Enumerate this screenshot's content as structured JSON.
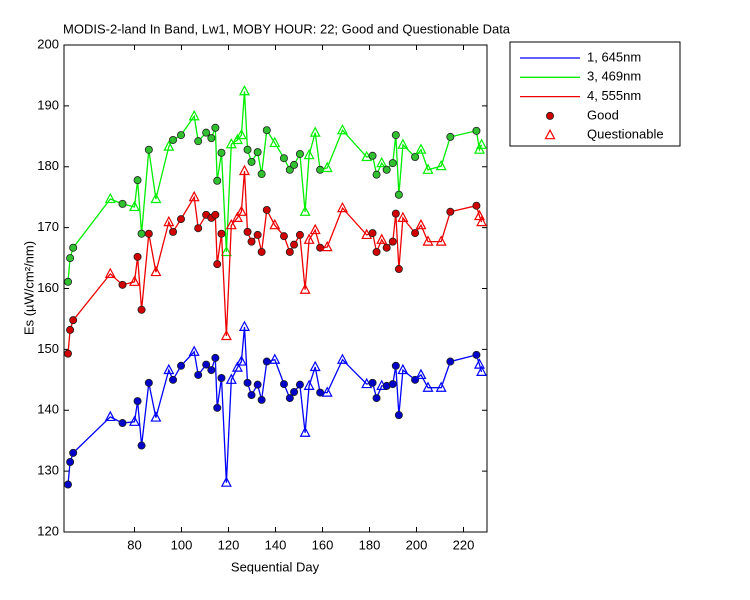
{
  "chart_data": {
    "type": "line",
    "title": "MODIS-2-land In Band,  Lw1, MOBY HOUR: 22;  Good and Questionable Data",
    "x_label": "Sequential Day",
    "y_label": "Es (µW/cm²/nm)",
    "xlim": [
      50,
      230
    ],
    "xticks": [
      80,
      100,
      120,
      140,
      160,
      180,
      200,
      220
    ],
    "ylim": [
      120,
      200
    ],
    "yticks": [
      120,
      130,
      140,
      150,
      160,
      170,
      180,
      190,
      200
    ],
    "x": [
      51.7,
      52.6,
      53.9,
      69.7,
      74.9,
      80.0,
      81.3,
      83.0,
      86.1,
      89.1,
      94.6,
      96.4,
      99.8,
      105.4,
      107.1,
      110.5,
      112.7,
      114.4,
      115.2,
      117.0,
      119.1,
      121.2,
      123.8,
      125.5,
      126.8,
      128.1,
      129.8,
      132.4,
      134.1,
      136.3,
      139.7,
      143.6,
      146.1,
      147.9,
      150.4,
      152.6,
      154.3,
      156.9,
      159.0,
      162.0,
      168.5,
      178.8,
      181.3,
      183.0,
      185.2,
      187.3,
      189.9,
      191.2,
      192.5,
      194.2,
      199.4,
      201.9,
      204.9,
      210.5,
      214.4,
      225.5,
      226.8,
      227.7
    ],
    "quality": [
      0,
      0,
      0,
      1,
      0,
      1,
      0,
      0,
      0,
      1,
      1,
      0,
      0,
      1,
      0,
      0,
      0,
      0,
      0,
      0,
      1,
      1,
      1,
      1,
      1,
      0,
      0,
      0,
      0,
      0,
      1,
      0,
      0,
      0,
      0,
      1,
      1,
      1,
      0,
      1,
      1,
      1,
      0,
      0,
      1,
      0,
      0,
      0,
      0,
      1,
      0,
      1,
      1,
      1,
      0,
      0,
      1,
      1
    ],
    "marker_legend": [
      {
        "name": "Good",
        "marker": "circle",
        "color": "#d00000"
      },
      {
        "name": "Questionable",
        "marker": "triangle",
        "color": "#ff0000"
      }
    ],
    "series": [
      {
        "name": "1, 645nm",
        "color": "#0000ff",
        "marker_fill": "#0000c8",
        "values": [
          127.8,
          131.5,
          133.0,
          138.9,
          137.9,
          138.1,
          141.5,
          134.2,
          144.5,
          138.8,
          146.6,
          145.0,
          147.3,
          149.6,
          145.8,
          147.5,
          146.6,
          148.6,
          140.4,
          145.3,
          128.1,
          145.0,
          147.0,
          148.0,
          153.7,
          144.5,
          142.5,
          144.2,
          141.7,
          148.0,
          148.3,
          144.3,
          142.0,
          143.0,
          144.2,
          136.3,
          144.0,
          147.1,
          142.9,
          142.9,
          148.3,
          144.3,
          144.5,
          142.0,
          144.0,
          144.0,
          144.3,
          147.3,
          139.2,
          146.6,
          145.0,
          145.8,
          143.7,
          143.7,
          148.0,
          149.1,
          147.5,
          146.3
        ]
      },
      {
        "name": "3, 469nm",
        "color": "#00ee00",
        "marker_fill": "#30c030",
        "values": [
          161.1,
          165.0,
          166.7,
          174.7,
          173.9,
          173.4,
          177.8,
          169.0,
          182.8,
          174.7,
          183.3,
          184.4,
          185.2,
          188.3,
          184.2,
          185.6,
          184.7,
          186.4,
          177.7,
          182.3,
          166.0,
          183.7,
          184.4,
          185.2,
          192.4,
          182.8,
          180.8,
          182.4,
          178.8,
          186.0,
          183.9,
          181.4,
          179.5,
          180.3,
          182.1,
          172.6,
          181.9,
          185.6,
          179.5,
          179.8,
          186.0,
          181.6,
          181.8,
          178.7,
          180.6,
          179.5,
          180.6,
          185.2,
          175.4,
          183.6,
          181.6,
          182.8,
          179.5,
          180.1,
          184.9,
          185.9,
          182.8,
          183.6
        ]
      },
      {
        "name": "4, 555nm",
        "color": "#ee0000",
        "marker_fill": "#d00000",
        "values": [
          149.3,
          153.2,
          154.8,
          162.4,
          160.6,
          161.1,
          165.2,
          156.5,
          169.0,
          162.7,
          170.9,
          169.3,
          171.4,
          175.0,
          169.9,
          172.1,
          171.6,
          172.1,
          164.0,
          169.0,
          152.2,
          170.4,
          171.6,
          172.6,
          179.3,
          169.3,
          167.7,
          168.8,
          166.0,
          172.9,
          170.4,
          168.6,
          166.0,
          167.2,
          168.8,
          159.8,
          168.0,
          169.6,
          166.7,
          166.8,
          173.2,
          168.8,
          169.1,
          166.0,
          168.0,
          166.7,
          167.7,
          172.3,
          163.2,
          171.6,
          169.1,
          170.4,
          167.7,
          167.7,
          172.6,
          173.6,
          171.9,
          170.9
        ]
      }
    ]
  }
}
